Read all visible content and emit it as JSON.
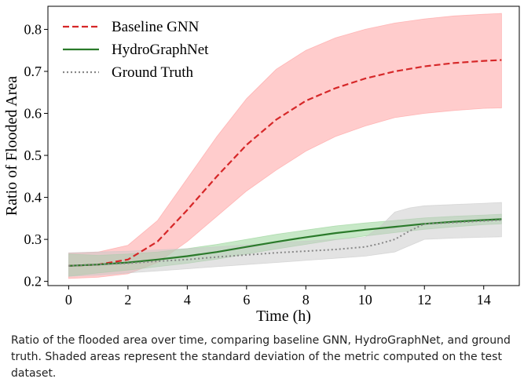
{
  "chart_data": {
    "type": "line",
    "xlabel": "Time (h)",
    "ylabel": "Ratio of Flooded Area",
    "xlim": [
      -0.7,
      15.2
    ],
    "ylim": [
      0.19,
      0.855
    ],
    "xticks": [
      0,
      2,
      4,
      6,
      8,
      10,
      12,
      14
    ],
    "yticks": [
      0.2,
      0.3,
      0.4,
      0.5,
      0.6,
      0.7,
      0.8
    ],
    "grid": false,
    "legend_position": "top-left",
    "series": [
      {
        "name": "Baseline GNN",
        "style": "dashed",
        "color": "#d62728",
        "band_color": "#ff9a9a",
        "x": [
          0,
          1,
          2,
          3,
          4,
          5,
          6,
          7,
          8,
          9,
          10,
          11,
          12,
          13,
          14,
          14.6
        ],
        "values": [
          0.237,
          0.24,
          0.252,
          0.295,
          0.37,
          0.45,
          0.525,
          0.585,
          0.63,
          0.66,
          0.683,
          0.7,
          0.712,
          0.72,
          0.725,
          0.727
        ],
        "lower": [
          0.207,
          0.21,
          0.218,
          0.245,
          0.295,
          0.355,
          0.415,
          0.465,
          0.51,
          0.545,
          0.57,
          0.59,
          0.6,
          0.607,
          0.612,
          0.613
        ],
        "upper": [
          0.267,
          0.27,
          0.286,
          0.345,
          0.445,
          0.545,
          0.635,
          0.705,
          0.75,
          0.78,
          0.8,
          0.815,
          0.825,
          0.832,
          0.836,
          0.838
        ]
      },
      {
        "name": "HydroGraphNet",
        "style": "solid",
        "color": "#2a7a2a",
        "band_color": "#8fd18f",
        "x": [
          0,
          1,
          2,
          3,
          4,
          5,
          6,
          7,
          8,
          9,
          10,
          11,
          12,
          13,
          14,
          14.6
        ],
        "values": [
          0.237,
          0.24,
          0.245,
          0.252,
          0.26,
          0.27,
          0.282,
          0.294,
          0.305,
          0.315,
          0.323,
          0.33,
          0.337,
          0.342,
          0.346,
          0.348
        ],
        "lower": [
          0.212,
          0.22,
          0.227,
          0.235,
          0.243,
          0.253,
          0.265,
          0.277,
          0.288,
          0.299,
          0.308,
          0.316,
          0.324,
          0.33,
          0.335,
          0.337
        ],
        "upper": [
          0.265,
          0.262,
          0.265,
          0.27,
          0.278,
          0.288,
          0.3,
          0.312,
          0.322,
          0.332,
          0.339,
          0.345,
          0.351,
          0.355,
          0.358,
          0.36
        ]
      },
      {
        "name": "Ground Truth",
        "style": "dotted",
        "color": "#888888",
        "band_color": "#c8c8c8",
        "x": [
          0,
          1,
          2,
          3,
          4,
          5,
          6,
          7,
          8,
          9,
          10,
          10.5,
          11,
          11.5,
          12,
          13,
          14,
          14.6
        ],
        "values": [
          0.237,
          0.24,
          0.243,
          0.248,
          0.252,
          0.258,
          0.263,
          0.268,
          0.272,
          0.276,
          0.282,
          0.29,
          0.3,
          0.32,
          0.337,
          0.34,
          0.344,
          0.346
        ],
        "lower": [
          0.212,
          0.215,
          0.22,
          0.225,
          0.23,
          0.235,
          0.24,
          0.245,
          0.25,
          0.255,
          0.26,
          0.265,
          0.27,
          0.285,
          0.3,
          0.303,
          0.305,
          0.306
        ],
        "upper": [
          0.268,
          0.27,
          0.272,
          0.275,
          0.278,
          0.282,
          0.287,
          0.292,
          0.296,
          0.3,
          0.305,
          0.33,
          0.365,
          0.375,
          0.38,
          0.383,
          0.386,
          0.388
        ]
      }
    ]
  },
  "caption": "Ratio of the flooded area over time, comparing baseline GNN, HydroGraphNet, and ground truth. Shaded areas represent the standard deviation of the metric computed on the test dataset."
}
